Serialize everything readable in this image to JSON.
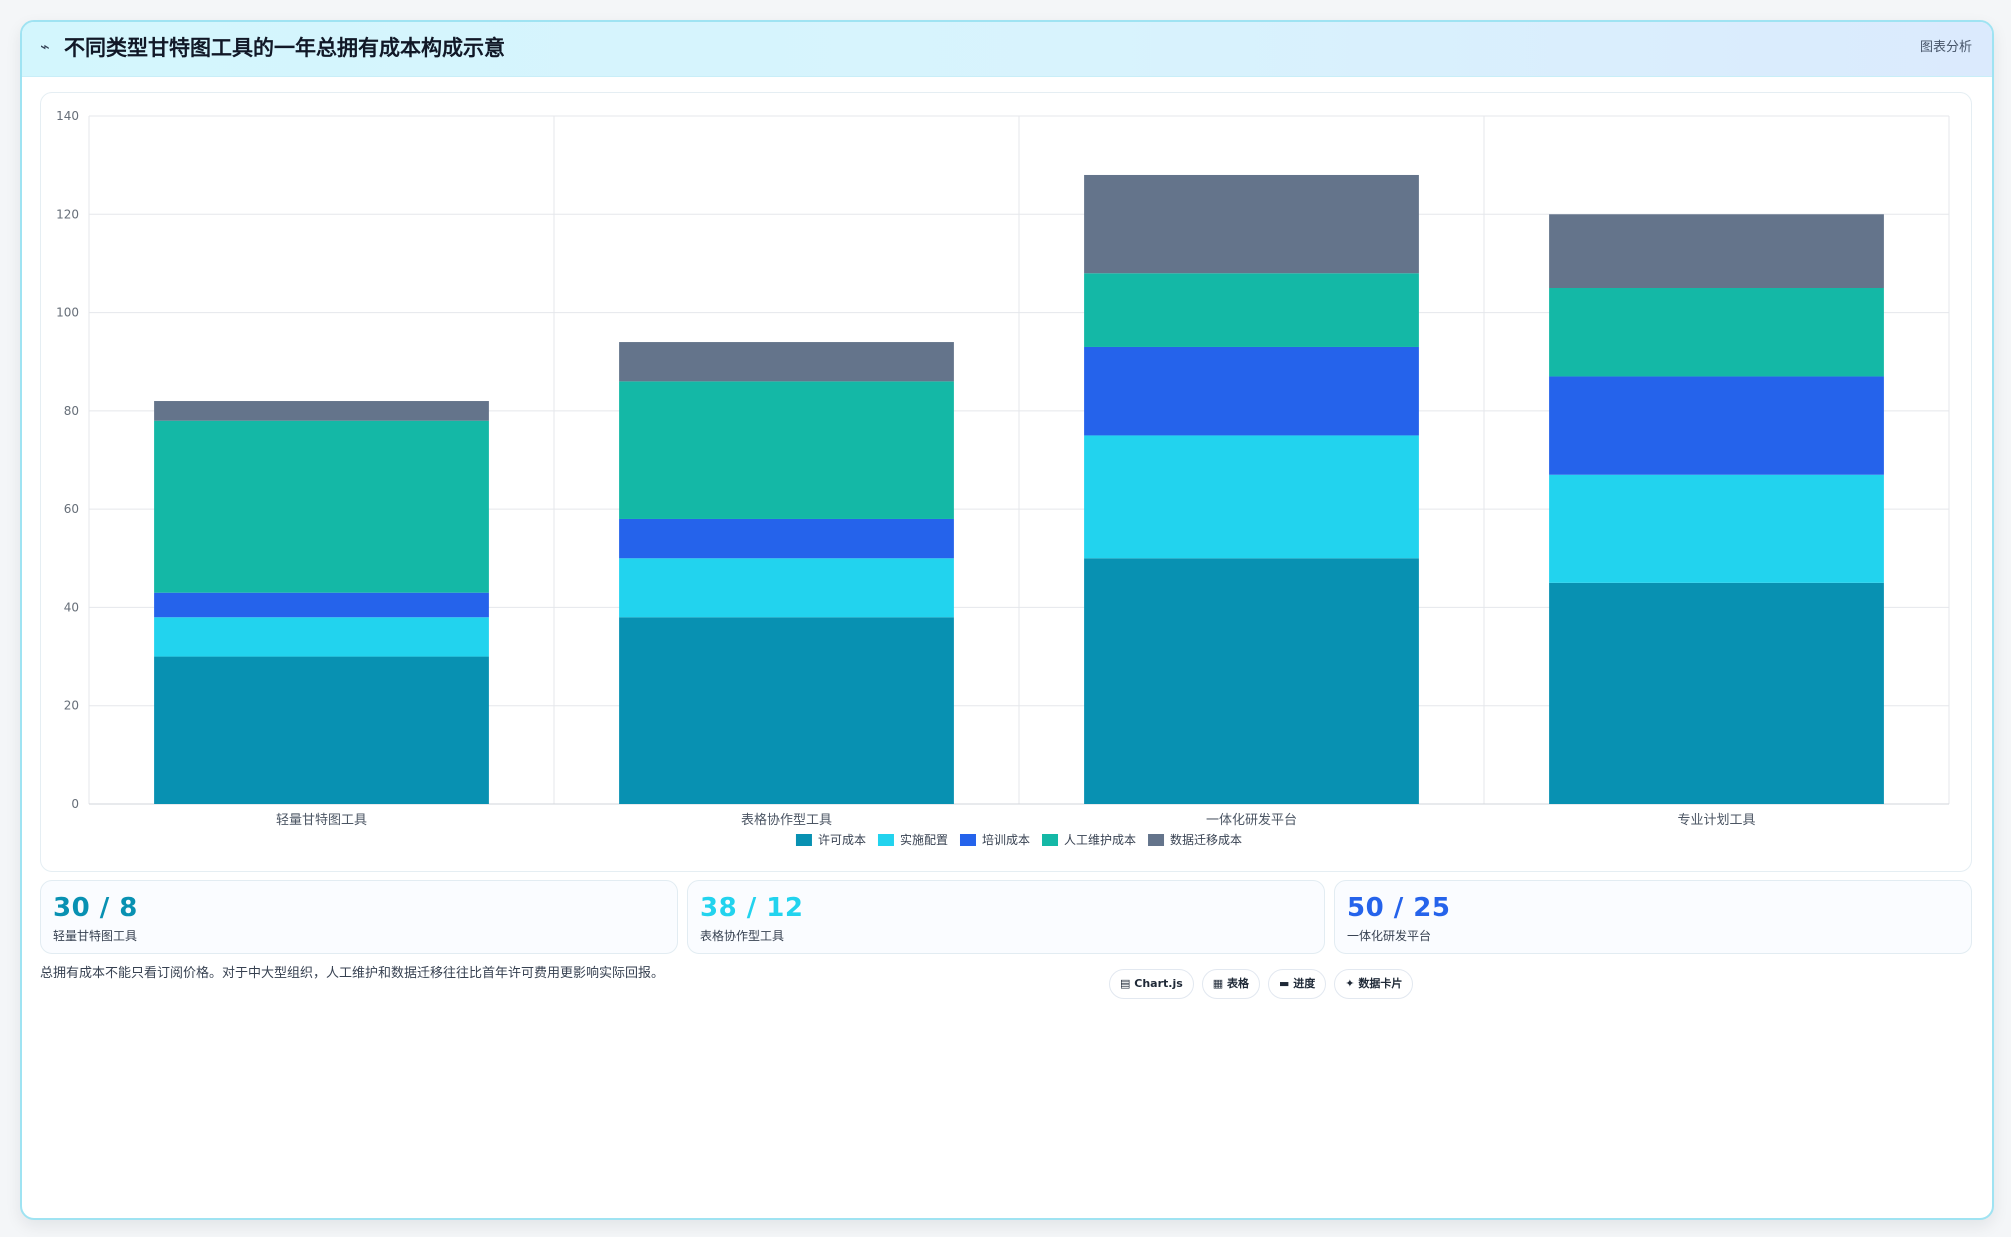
{
  "header": {
    "icon": "trend-line-icon",
    "title": "不同类型甘特图工具的一年总拥有成本构成示意",
    "tag": "图表分析"
  },
  "chart_data": {
    "type": "bar",
    "stacked": true,
    "categories": [
      "轻量甘特图工具",
      "表格协作型工具",
      "一体化研发平台",
      "专业计划工具"
    ],
    "series": [
      {
        "name": "许可成本",
        "color": "#0891b2",
        "values": [
          30,
          38,
          50,
          45
        ]
      },
      {
        "name": "实施配置",
        "color": "#22d3ee",
        "values": [
          8,
          12,
          25,
          22
        ]
      },
      {
        "name": "培训成本",
        "color": "#2563eb",
        "values": [
          5,
          8,
          18,
          20
        ]
      },
      {
        "name": "人工维护成本",
        "color": "#14b8a6",
        "values": [
          35,
          28,
          15,
          18
        ]
      },
      {
        "name": "数据迁移成本",
        "color": "#64748b",
        "values": [
          4,
          8,
          20,
          15
        ]
      }
    ],
    "ylim": [
      0,
      140
    ],
    "yticks": [
      0,
      20,
      40,
      60,
      80,
      100,
      120,
      140
    ],
    "grid": true,
    "legend": "bottom"
  },
  "stats": [
    {
      "value": "30 / 8",
      "label": "轻量甘特图工具",
      "color": "#0891b2"
    },
    {
      "value": "38 / 12",
      "label": "表格协作型工具",
      "color": "#22d3ee"
    },
    {
      "value": "50 / 25",
      "label": "一体化研发平台",
      "color": "#2563eb"
    }
  ],
  "footnote": "总拥有成本不能只看订阅价格。对于中大型组织，人工维护和数据迁移往往比首年许可费用更影响实际回报。",
  "chips": [
    {
      "icon": "chart-icon",
      "glyph": "▤",
      "label": "Chart.js"
    },
    {
      "icon": "table-icon",
      "glyph": "▦",
      "label": "表格"
    },
    {
      "icon": "progress-icon",
      "glyph": "▬",
      "label": "进度"
    },
    {
      "icon": "card-icon",
      "glyph": "✦",
      "label": "数据卡片"
    }
  ]
}
